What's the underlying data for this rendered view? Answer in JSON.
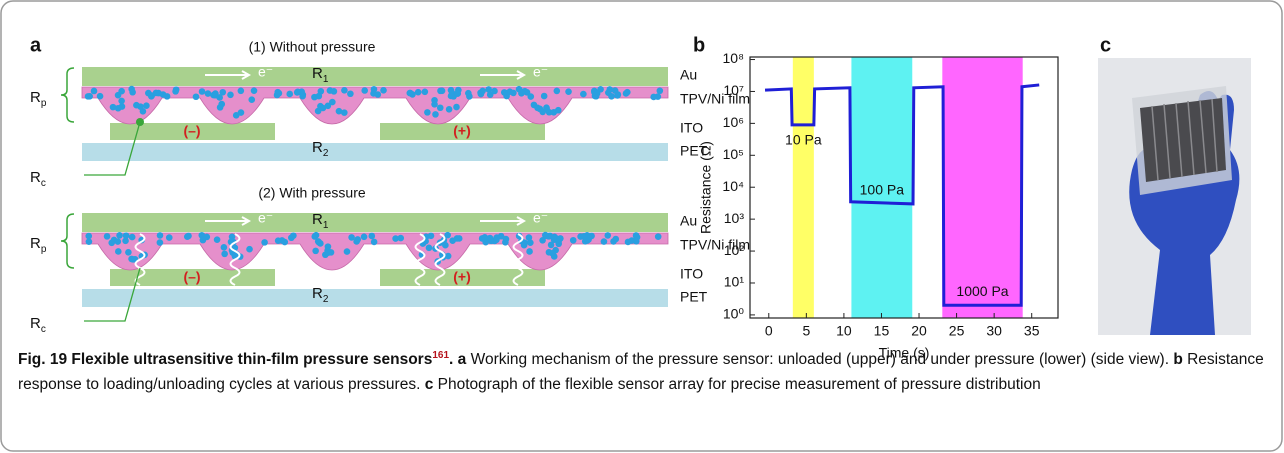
{
  "panel_labels": [
    "a",
    "b",
    "c"
  ],
  "diagram": {
    "states": [
      {
        "title": "(1) Without pressure"
      },
      {
        "title": "(2) With pressure"
      }
    ],
    "layers": [
      "Au",
      "TPV/Ni film",
      "ITO",
      "PET"
    ],
    "electron": "e⁻",
    "electrodes": [
      "(–)",
      "(+)"
    ],
    "resistances": {
      "r1": {
        "symbol": "R",
        "sub": "1"
      },
      "r2": {
        "symbol": "R",
        "sub": "2"
      },
      "rp": {
        "symbol": "R",
        "sub": "p"
      },
      "rc": {
        "symbol": "R",
        "sub": "c"
      }
    }
  },
  "chart_data": {
    "type": "line",
    "x_label": "Time (s)",
    "y_label": "Resistance (Ω)",
    "log_y": true,
    "x": [
      -0.5,
      3,
      3.1,
      6,
      6.1,
      10.8,
      10.9,
      19.2,
      19.3,
      23.2,
      23.3,
      33.6,
      33.7,
      36
    ],
    "series": [
      {
        "color": "#1f1fd6",
        "values": [
          11000000,
          12000000,
          900000,
          900000,
          12000000,
          13000000,
          3500,
          3000,
          13000000,
          14000000,
          2,
          2,
          14000000,
          16000000
        ]
      }
    ],
    "regions": [
      {
        "x": [
          3.2,
          6
        ],
        "color": "#ffff66",
        "label": "10 Pa"
      },
      {
        "x": [
          11,
          19.1
        ],
        "color": "#5ef2f2",
        "label": "100 Pa"
      },
      {
        "x": [
          23.1,
          33.8
        ],
        "color": "#ff66ff",
        "label": "1000 Pa"
      }
    ],
    "xlim": [
      -2.5,
      38.5
    ],
    "ylim": [
      0.8,
      120000000
    ],
    "xticks": [
      0,
      5,
      10,
      15,
      20,
      25,
      30,
      35
    ],
    "yticks": [
      {
        "value": 1,
        "label": "10⁰"
      },
      {
        "value": 10,
        "label": "10¹"
      },
      {
        "value": 100,
        "label": "10²"
      },
      {
        "value": 1000,
        "label": "10³"
      },
      {
        "value": 10000,
        "label": "10⁴"
      },
      {
        "value": 100000,
        "label": "10⁵"
      },
      {
        "value": 1000000,
        "label": "10⁶"
      },
      {
        "value": 10000000,
        "label": "10⁷"
      },
      {
        "value": 100000000,
        "label": "10⁸"
      }
    ]
  },
  "caption": {
    "title": "Fig. 19 Flexible ultrasensitive thin-film pressure sensors",
    "ref": "161",
    "parts": [
      {
        "label": "a",
        "text": "Working mechanism of the pressure sensor: unloaded (upper) and under pressure (lower) (side view)."
      },
      {
        "label": "b",
        "text": "Resistance response to loading/unloading cycles at various pressures."
      },
      {
        "label": "c",
        "text": "Photograph of the flexible sensor array for precise measurement of pressure distribution"
      }
    ]
  }
}
